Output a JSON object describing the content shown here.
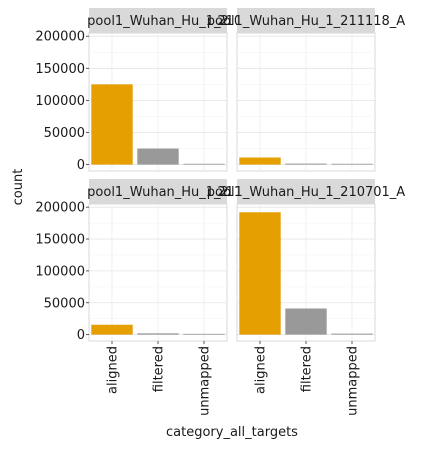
{
  "chart_data": {
    "type": "bar",
    "facet": "wrap",
    "xlabel": "category_all_targets",
    "ylabel": "count",
    "categories": [
      "aligned",
      "filtered",
      "unmapped"
    ],
    "category_colors": [
      "#E69F00",
      "#999999",
      "#999999"
    ],
    "ylim": [
      -10000,
      205000
    ],
    "yticks": [
      0,
      50000,
      100000,
      150000,
      200000
    ],
    "ytick_labels": [
      "0",
      "50000",
      "100000",
      "150000",
      "200000"
    ],
    "grid": true,
    "panels": [
      {
        "strip_left": "pool1_Wuhan_Hu_1_2",
        "strip_right": "21070",
        "values": [
          125000,
          25000,
          0
        ]
      },
      {
        "strip_left": "pool1_Wuhan_Hu_1_211118_A",
        "strip_right": "",
        "values": [
          11000,
          1500,
          0
        ]
      },
      {
        "strip_left": "pool1_Wuhan_Hu_1_2",
        "strip_right": "21112",
        "values": [
          15500,
          2000,
          0
        ]
      },
      {
        "strip_left": "pool1_Wuhan_Hu_1_210701_A",
        "strip_right": "",
        "values": [
          192000,
          41000,
          1500
        ]
      }
    ]
  }
}
